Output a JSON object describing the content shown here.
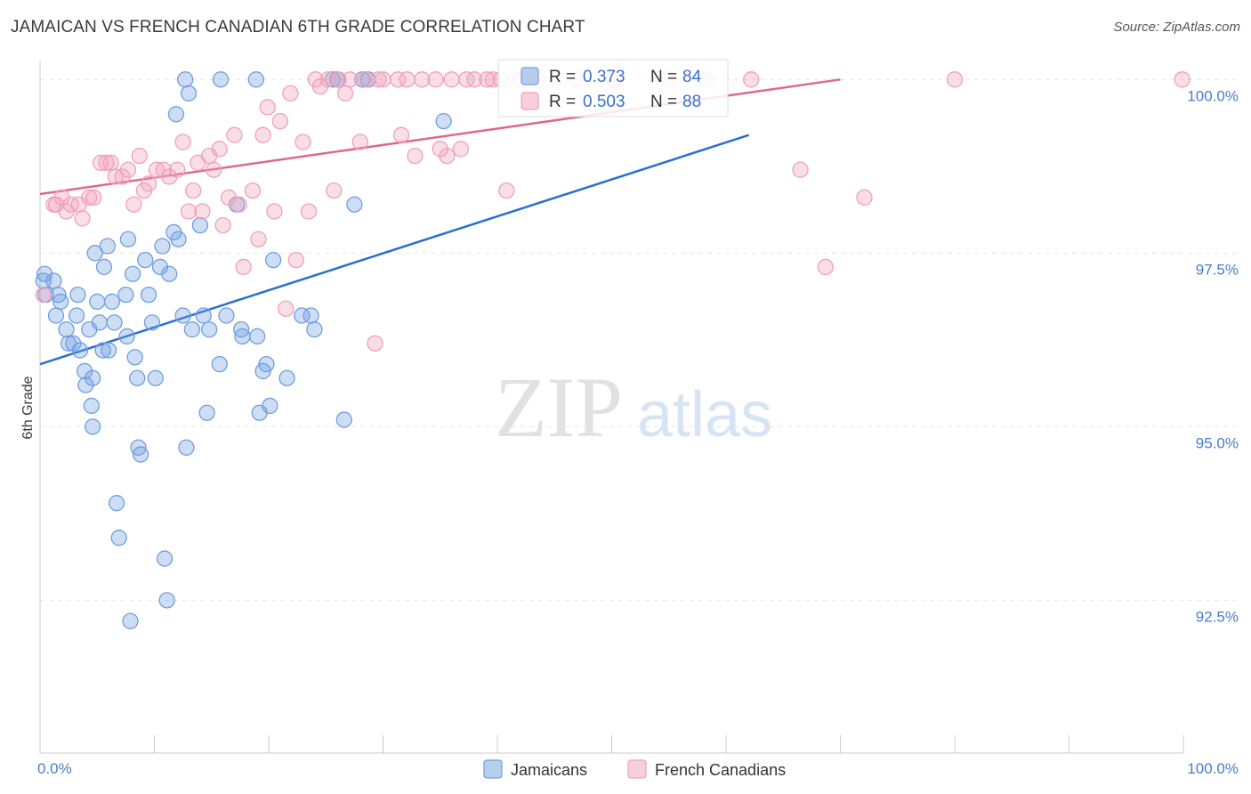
{
  "title": "JAMAICAN VS FRENCH CANADIAN 6TH GRADE CORRELATION CHART",
  "source": "Source: ZipAtlas.com",
  "watermark": {
    "zip": "ZIP",
    "atlas": "atlas"
  },
  "chart_data": {
    "type": "scatter",
    "xlabel": "",
    "ylabel": "6th Grade",
    "xlim": [
      0,
      100
    ],
    "ylim": [
      90.3,
      100.35
    ],
    "x_ticks": [
      {
        "value": 0,
        "label": "0.0%"
      },
      {
        "value": 100,
        "label": "100.0%"
      }
    ],
    "y_ticks": [
      {
        "value": 92.5,
        "label": "92.5%"
      },
      {
        "value": 95.0,
        "label": "95.0%"
      },
      {
        "value": 97.5,
        "label": "97.5%"
      },
      {
        "value": 100.0,
        "label": "100.0%"
      }
    ],
    "grid": true,
    "legend_position": "top-center",
    "series": [
      {
        "name": "Jamaicans",
        "color": "#6f9fe0",
        "line_color": "#2a6fcf",
        "R": "0.373",
        "N": "84",
        "trend": {
          "x0": 0,
          "y0": 95.9,
          "x1": 62,
          "y1": 99.2
        },
        "points": [
          [
            0.3,
            97.1
          ],
          [
            0.4,
            97.2
          ],
          [
            0.5,
            96.9
          ],
          [
            1.2,
            97.1
          ],
          [
            1.4,
            96.6
          ],
          [
            1.6,
            96.9
          ],
          [
            1.8,
            96.8
          ],
          [
            2.3,
            96.4
          ],
          [
            2.5,
            96.2
          ],
          [
            2.9,
            96.2
          ],
          [
            3.2,
            96.6
          ],
          [
            3.3,
            96.9
          ],
          [
            3.5,
            96.1
          ],
          [
            3.9,
            95.8
          ],
          [
            4.0,
            95.6
          ],
          [
            4.3,
            96.4
          ],
          [
            4.5,
            95.3
          ],
          [
            4.6,
            95.7
          ],
          [
            4.6,
            95.0
          ],
          [
            4.8,
            97.5
          ],
          [
            5.0,
            96.8
          ],
          [
            5.2,
            96.5
          ],
          [
            5.5,
            96.1
          ],
          [
            5.6,
            97.3
          ],
          [
            5.9,
            97.6
          ],
          [
            6.0,
            96.1
          ],
          [
            6.3,
            96.8
          ],
          [
            6.5,
            96.5
          ],
          [
            6.7,
            93.9
          ],
          [
            6.9,
            93.4
          ],
          [
            7.5,
            96.9
          ],
          [
            7.6,
            96.3
          ],
          [
            7.7,
            97.7
          ],
          [
            7.9,
            92.2
          ],
          [
            8.1,
            97.2
          ],
          [
            8.3,
            96.0
          ],
          [
            8.5,
            95.7
          ],
          [
            8.6,
            94.7
          ],
          [
            8.8,
            94.6
          ],
          [
            9.2,
            97.4
          ],
          [
            9.5,
            96.9
          ],
          [
            9.8,
            96.5
          ],
          [
            10.1,
            95.7
          ],
          [
            10.5,
            97.3
          ],
          [
            10.7,
            97.6
          ],
          [
            10.9,
            93.1
          ],
          [
            11.1,
            92.5
          ],
          [
            11.3,
            97.2
          ],
          [
            11.7,
            97.8
          ],
          [
            11.9,
            99.5
          ],
          [
            12.1,
            97.7
          ],
          [
            12.5,
            96.6
          ],
          [
            12.7,
            100.0
          ],
          [
            12.8,
            94.7
          ],
          [
            13.0,
            99.8
          ],
          [
            13.3,
            96.4
          ],
          [
            14.0,
            97.9
          ],
          [
            14.3,
            96.6
          ],
          [
            14.6,
            95.2
          ],
          [
            14.8,
            96.4
          ],
          [
            15.7,
            95.9
          ],
          [
            15.8,
            100.0
          ],
          [
            16.3,
            96.6
          ],
          [
            17.2,
            98.2
          ],
          [
            17.6,
            96.4
          ],
          [
            17.7,
            96.3
          ],
          [
            18.9,
            100.0
          ],
          [
            19.0,
            96.3
          ],
          [
            19.2,
            95.2
          ],
          [
            19.5,
            95.8
          ],
          [
            19.8,
            95.9
          ],
          [
            20.1,
            95.3
          ],
          [
            20.4,
            97.4
          ],
          [
            21.6,
            95.7
          ],
          [
            22.9,
            96.6
          ],
          [
            23.7,
            96.6
          ],
          [
            24.0,
            96.4
          ],
          [
            25.6,
            100.0
          ],
          [
            26.0,
            100.0
          ],
          [
            26.6,
            95.1
          ],
          [
            27.5,
            98.2
          ],
          [
            28.2,
            100.0
          ],
          [
            28.7,
            100.0
          ],
          [
            35.3,
            99.4
          ]
        ]
      },
      {
        "name": "French Canadians",
        "color": "#f0a0b8",
        "line_color": "#e06890",
        "R": "0.503",
        "N": "88",
        "trend": {
          "x0": 0,
          "y0": 98.35,
          "x1": 70,
          "y1": 100.0
        },
        "points": [
          [
            0.3,
            96.9
          ],
          [
            1.2,
            98.2
          ],
          [
            1.4,
            98.2
          ],
          [
            1.9,
            98.3
          ],
          [
            2.3,
            98.1
          ],
          [
            2.7,
            98.2
          ],
          [
            3.4,
            98.2
          ],
          [
            3.7,
            98.0
          ],
          [
            4.3,
            98.3
          ],
          [
            4.7,
            98.3
          ],
          [
            5.3,
            98.8
          ],
          [
            5.8,
            98.8
          ],
          [
            6.2,
            98.8
          ],
          [
            6.6,
            98.6
          ],
          [
            7.2,
            98.6
          ],
          [
            7.7,
            98.7
          ],
          [
            8.2,
            98.2
          ],
          [
            8.7,
            98.9
          ],
          [
            9.1,
            98.4
          ],
          [
            9.5,
            98.5
          ],
          [
            10.2,
            98.7
          ],
          [
            10.8,
            98.7
          ],
          [
            11.3,
            98.6
          ],
          [
            12.0,
            98.7
          ],
          [
            12.5,
            99.1
          ],
          [
            13.0,
            98.1
          ],
          [
            13.4,
            98.4
          ],
          [
            13.8,
            98.8
          ],
          [
            14.2,
            98.1
          ],
          [
            14.8,
            98.9
          ],
          [
            15.2,
            98.7
          ],
          [
            15.7,
            99.0
          ],
          [
            16.0,
            97.9
          ],
          [
            16.5,
            98.3
          ],
          [
            17.0,
            99.2
          ],
          [
            17.4,
            98.2
          ],
          [
            17.8,
            97.3
          ],
          [
            18.6,
            98.4
          ],
          [
            19.1,
            97.7
          ],
          [
            19.5,
            99.2
          ],
          [
            19.9,
            99.6
          ],
          [
            20.5,
            98.1
          ],
          [
            21.0,
            99.4
          ],
          [
            21.5,
            96.7
          ],
          [
            21.9,
            99.8
          ],
          [
            22.4,
            97.4
          ],
          [
            23.0,
            99.1
          ],
          [
            23.5,
            98.1
          ],
          [
            24.1,
            100.0
          ],
          [
            24.5,
            99.9
          ],
          [
            25.2,
            100.0
          ],
          [
            25.7,
            98.4
          ],
          [
            26.1,
            100.0
          ],
          [
            26.7,
            99.8
          ],
          [
            27.1,
            100.0
          ],
          [
            28.0,
            99.1
          ],
          [
            28.5,
            100.0
          ],
          [
            29.3,
            96.2
          ],
          [
            29.6,
            100.0
          ],
          [
            30.0,
            100.0
          ],
          [
            31.3,
            100.0
          ],
          [
            31.6,
            99.2
          ],
          [
            32.1,
            100.0
          ],
          [
            32.8,
            98.9
          ],
          [
            33.4,
            100.0
          ],
          [
            34.6,
            100.0
          ],
          [
            35.0,
            99.0
          ],
          [
            35.6,
            98.9
          ],
          [
            36.0,
            100.0
          ],
          [
            36.8,
            99.0
          ],
          [
            37.3,
            100.0
          ],
          [
            38.0,
            100.0
          ],
          [
            39.1,
            100.0
          ],
          [
            39.6,
            100.0
          ],
          [
            40.3,
            100.0
          ],
          [
            40.8,
            98.4
          ],
          [
            42.0,
            100.0
          ],
          [
            43.5,
            100.0
          ],
          [
            47.0,
            100.0
          ],
          [
            50.2,
            100.0
          ],
          [
            55.0,
            100.0
          ],
          [
            58.3,
            100.0
          ],
          [
            62.2,
            100.0
          ],
          [
            66.5,
            98.7
          ],
          [
            68.7,
            97.3
          ],
          [
            72.1,
            98.3
          ],
          [
            80.0,
            100.0
          ],
          [
            99.9,
            100.0
          ]
        ]
      }
    ]
  }
}
